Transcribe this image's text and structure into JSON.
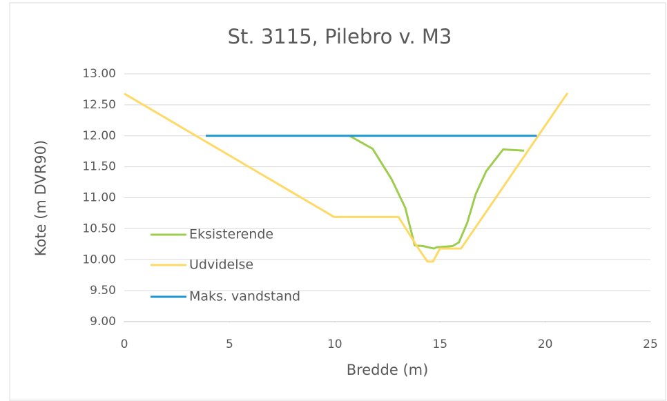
{
  "chart_data": {
    "type": "line",
    "title": "St. 3115, Pilebro v. M3",
    "xlabel": "Bredde (m)",
    "ylabel": "Kote (m DVR90)",
    "xlim": [
      0,
      25
    ],
    "xticks": [
      0,
      5,
      10,
      15,
      20,
      25
    ],
    "ylim": [
      9,
      13
    ],
    "yticks": [
      {
        "value": 9,
        "label": "9.00"
      },
      {
        "value": 9.5,
        "label": "9.50"
      },
      {
        "value": 10,
        "label": "10.00"
      },
      {
        "value": 10.5,
        "label": "10.50"
      },
      {
        "value": 11,
        "label": "11.00"
      },
      {
        "value": 11.5,
        "label": "11.50"
      },
      {
        "value": 12,
        "label": "12.00"
      },
      {
        "value": 12.5,
        "label": "12.50"
      },
      {
        "value": 13,
        "label": "13.00"
      }
    ],
    "grid": true,
    "legend": "left",
    "series": [
      {
        "name": "Eksisterende",
        "color": "#9dcd4f",
        "x": [
          10.7,
          11.8,
          12.7,
          13.35,
          13.8,
          14.2,
          14.7,
          14.85,
          15.6,
          15.9,
          16.3,
          16.7,
          17.2,
          18.0,
          19.0
        ],
        "values": [
          12.0,
          11.79,
          11.3,
          10.84,
          10.23,
          10.22,
          10.18,
          10.2,
          10.22,
          10.28,
          10.6,
          11.06,
          11.43,
          11.78,
          11.76
        ]
      },
      {
        "name": "Udvidelse",
        "color": "#ffd966",
        "x": [
          0,
          9.97,
          13.03,
          13.9,
          14.4,
          14.67,
          15.0,
          16.0,
          21.06
        ],
        "values": [
          12.68,
          10.69,
          10.69,
          10.22,
          9.97,
          9.97,
          10.18,
          10.18,
          12.69
        ]
      },
      {
        "name": "Maks. vandstand",
        "color": "#1e96cf",
        "x": [
          3.87,
          19.6
        ],
        "values": [
          12.0,
          12.0
        ]
      }
    ]
  }
}
